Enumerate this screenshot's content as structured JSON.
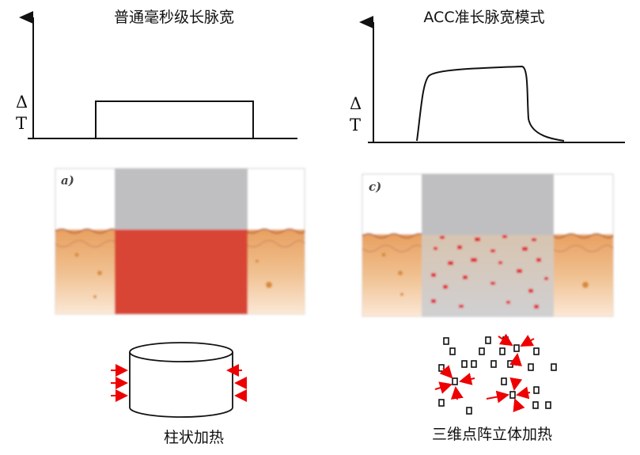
{
  "left": {
    "title": "普通毫秒级长脉宽",
    "axis_label_top": "Δ",
    "axis_label_bottom": "T",
    "panel_label": "a)",
    "caption": "柱状加热"
  },
  "right": {
    "title": "ACC准长脉宽模式",
    "axis_label_top": "Δ",
    "axis_label_bottom": "T",
    "panel_label": "c)",
    "caption": "三维点阵立体加热"
  }
}
